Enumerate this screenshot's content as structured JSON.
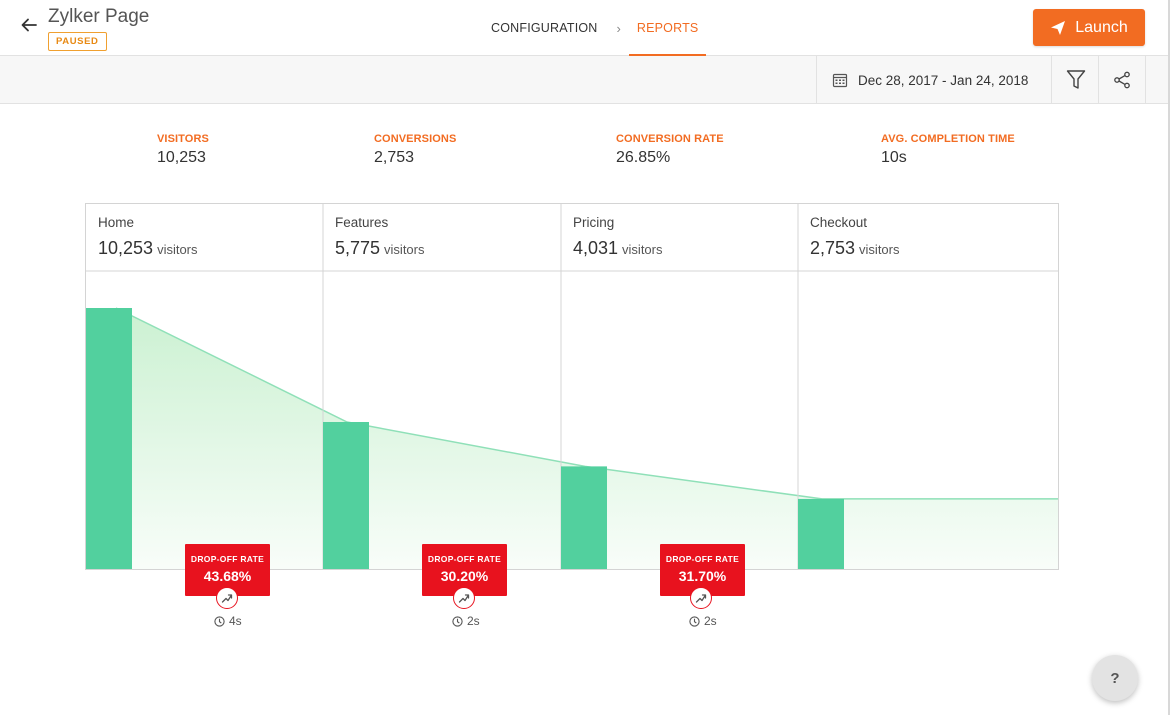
{
  "header": {
    "title": "Zylker Page",
    "status": "PAUSED",
    "launch_label": "Launch",
    "tabs": [
      {
        "label": "CONFIGURATION",
        "active": false
      },
      {
        "label": "REPORTS",
        "active": true
      }
    ]
  },
  "toolbar": {
    "date_range": "Dec 28, 2017 - Jan 24, 2018",
    "icons": [
      "calendar-icon",
      "filter-icon",
      "share-icon"
    ]
  },
  "metrics": [
    {
      "label": "VISITORS",
      "value": "10,253"
    },
    {
      "label": "CONVERSIONS",
      "value": "2,753"
    },
    {
      "label": "CONVERSION RATE",
      "value": "26.85%"
    },
    {
      "label": "AVG. COMPLETION TIME",
      "value": "10s"
    }
  ],
  "funnel": {
    "visitors_unit": "visitors",
    "steps": [
      {
        "name": "Home",
        "count": "10,253",
        "visitors": 10253
      },
      {
        "name": "Features",
        "count": "5,775",
        "visitors": 5775
      },
      {
        "name": "Pricing",
        "count": "4,031",
        "visitors": 4031
      },
      {
        "name": "Checkout",
        "count": "2,753",
        "visitors": 2753
      }
    ],
    "dropoffs": [
      {
        "label": "DROP-OFF RATE",
        "value": "43.68%",
        "time": "4s"
      },
      {
        "label": "DROP-OFF RATE",
        "value": "30.20%",
        "time": "2s"
      },
      {
        "label": "DROP-OFF RATE",
        "value": "31.70%",
        "time": "2s"
      }
    ]
  },
  "help": {
    "label": "?"
  },
  "colors": {
    "accent": "#f26c22",
    "bar": "#52d09e",
    "dropoff": "#e8121e",
    "area_top": "#c8f0cf",
    "line": "#8fe0b8"
  }
}
